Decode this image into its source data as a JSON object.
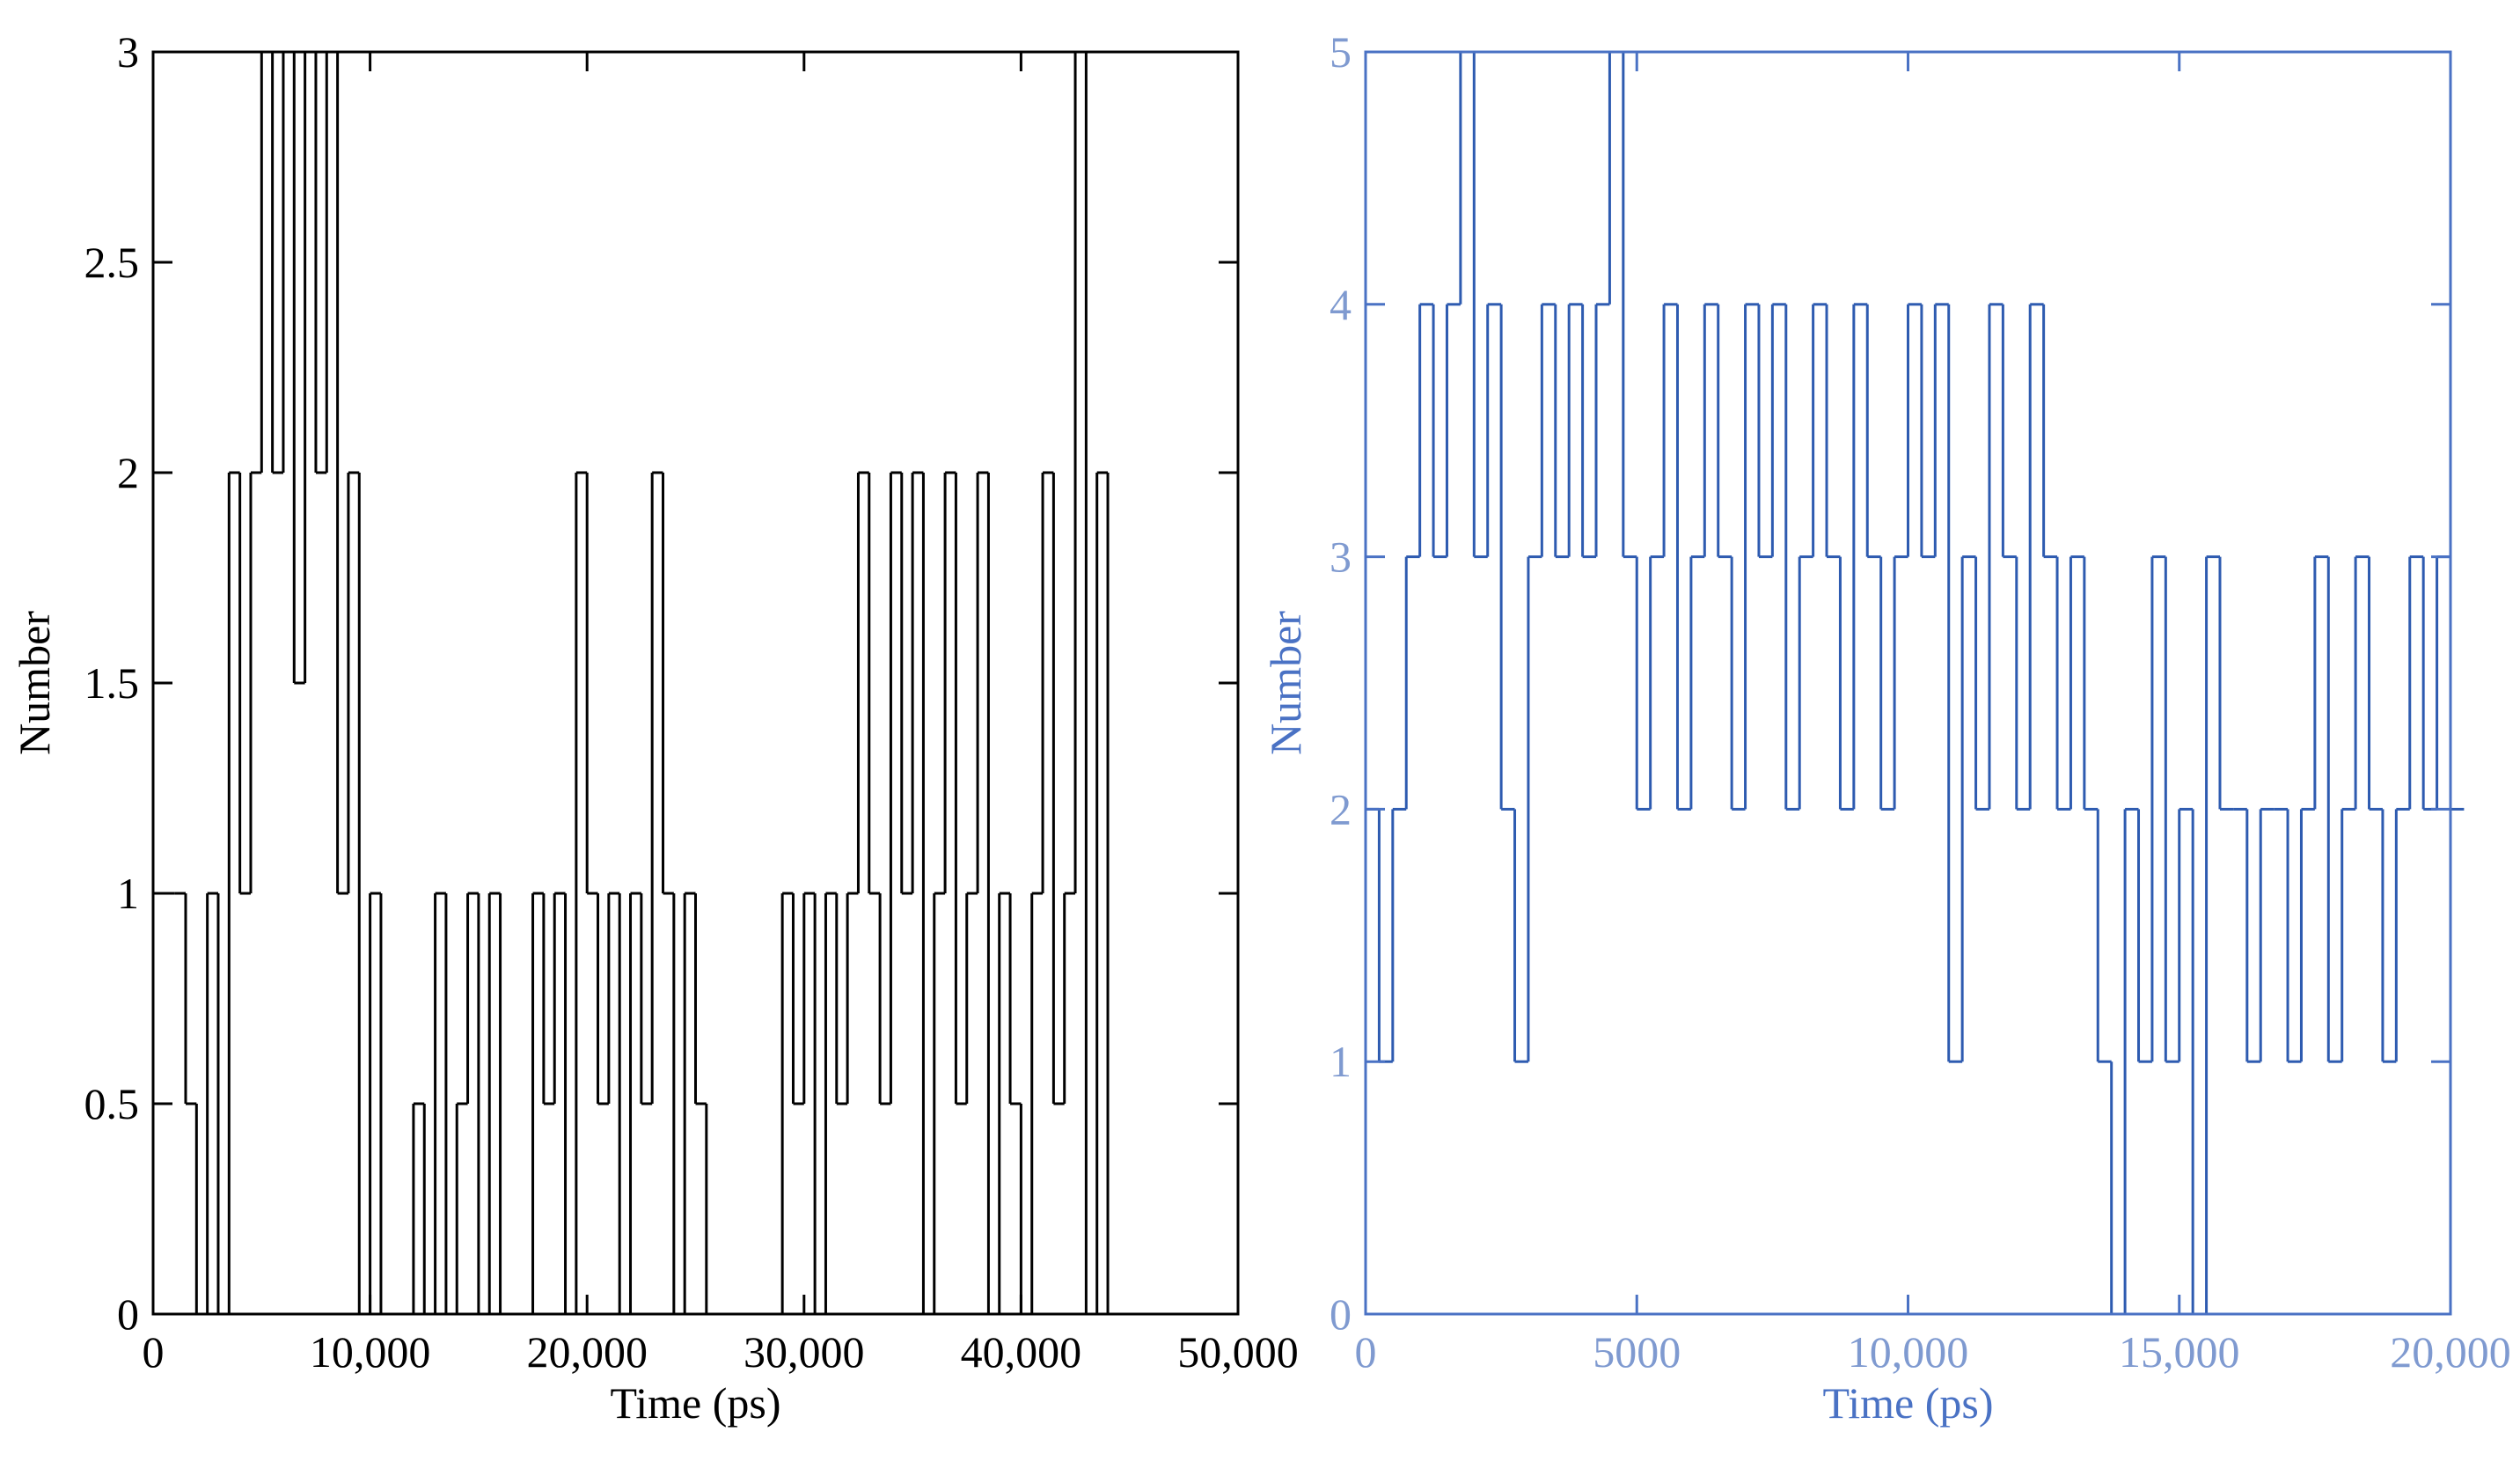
{
  "chart_data": [
    {
      "type": "line",
      "drawstyle": "steps-post",
      "color": "#000000",
      "axis_color": "#000000",
      "tick_label_color": "#000000",
      "xlabel": "Time (ps)",
      "ylabel": "Number",
      "xlim": [
        0,
        50000
      ],
      "xticks": [
        0,
        {
          "value": 10000,
          "label": "10,000"
        },
        {
          "value": 20000,
          "label": "20,000"
        },
        {
          "value": 30000,
          "label": "30,000"
        },
        {
          "value": 40000,
          "label": "40,000"
        },
        {
          "value": 50000,
          "label": "50,000"
        }
      ],
      "ylim": [
        0,
        3
      ],
      "yticks": [
        0,
        0.5,
        1,
        1.5,
        2,
        2.5,
        3
      ],
      "grid": false,
      "x": [
        0,
        500,
        1000,
        1500,
        2000,
        2500,
        3000,
        3500,
        4000,
        4500,
        5000,
        5500,
        6000,
        6500,
        7000,
        7500,
        8000,
        8500,
        9000,
        9500,
        10000,
        10500,
        11000,
        11500,
        12000,
        12500,
        13000,
        13500,
        14000,
        14500,
        15000,
        15500,
        16000,
        16500,
        17000,
        17500,
        18000,
        18500,
        19000,
        19500,
        20000,
        20500,
        21000,
        21500,
        22000,
        22500,
        23000,
        23500,
        24000,
        24500,
        25000,
        25500,
        26000,
        26500,
        27000,
        27500,
        28000,
        28500,
        29000,
        29500,
        30000,
        30500,
        31000,
        31500,
        32000,
        32500,
        33000,
        33500,
        34000,
        34500,
        35000,
        35500,
        36000,
        36500,
        37000,
        37500,
        38000,
        38500,
        39000,
        39500,
        40000,
        40500,
        41000,
        41500,
        42000,
        42500,
        43000,
        43500,
        44000
      ],
      "values": [
        1,
        1,
        1,
        0.5,
        0,
        1,
        0,
        2,
        1,
        2,
        3,
        2,
        3,
        1.5,
        3,
        2,
        3,
        1,
        2,
        0,
        1,
        0,
        0,
        0,
        0.5,
        0,
        1,
        0,
        0.5,
        1,
        0,
        1,
        0,
        0,
        0,
        1,
        0.5,
        1,
        0,
        2,
        1,
        0.5,
        1,
        0,
        1,
        0.5,
        2,
        1,
        0,
        1,
        0.5,
        0,
        0,
        0,
        0,
        0,
        0,
        0,
        1,
        0.5,
        1,
        0,
        1,
        0.5,
        1,
        2,
        1,
        0.5,
        2,
        1,
        2,
        0,
        1,
        2,
        0.5,
        1,
        2,
        0,
        1,
        0.5,
        0,
        1,
        2,
        0.5,
        1,
        3,
        0,
        2,
        0
      ]
    },
    {
      "type": "line",
      "drawstyle": "steps-post",
      "color": "#2e5bb0",
      "axis_color": "#4a72c4",
      "tick_label_color": "#7f9ad0",
      "xlabel": "Time (ps)",
      "ylabel": "Number",
      "xlim": [
        0,
        20000
      ],
      "xticks": [
        0,
        5000,
        {
          "value": 10000,
          "label": "10,000"
        },
        {
          "value": 15000,
          "label": "15,000"
        },
        {
          "value": 20000,
          "label": "20,000"
        }
      ],
      "ylim": [
        0,
        5
      ],
      "yticks": [
        0,
        1,
        2,
        3,
        4,
        5
      ],
      "grid": false,
      "x": [
        0,
        250,
        500,
        750,
        1000,
        1250,
        1500,
        1750,
        2000,
        2250,
        2500,
        2750,
        3000,
        3250,
        3500,
        3750,
        4000,
        4250,
        4500,
        4750,
        5000,
        5250,
        5500,
        5750,
        6000,
        6250,
        6500,
        6750,
        7000,
        7250,
        7500,
        7750,
        8000,
        8250,
        8500,
        8750,
        9000,
        9250,
        9500,
        9750,
        10000,
        10250,
        10500,
        10750,
        11000,
        11250,
        11500,
        11750,
        12000,
        12250,
        12500,
        12750,
        13000,
        13250,
        13500,
        13750,
        14000,
        14250,
        14500,
        14750,
        15000,
        15250,
        15500,
        15750,
        16000,
        16250,
        16500,
        16750,
        17000,
        17250,
        17500,
        17750,
        18000,
        18250,
        18500,
        18750,
        19000,
        19250,
        19500,
        19750,
        20000
      ],
      "values": [
        2,
        1,
        2,
        3,
        4,
        3,
        4,
        5,
        3,
        4,
        2,
        1,
        3,
        4,
        3,
        4,
        3,
        4,
        5,
        3,
        2,
        3,
        4,
        2,
        3,
        4,
        3,
        2,
        4,
        3,
        4,
        2,
        3,
        4,
        3,
        2,
        4,
        3,
        2,
        3,
        4,
        3,
        4,
        1,
        3,
        2,
        4,
        3,
        2,
        4,
        3,
        2,
        3,
        2,
        1,
        0,
        2,
        1,
        3,
        1,
        2,
        0,
        3,
        2,
        2,
        1,
        2,
        2,
        1,
        2,
        3,
        1,
        2,
        3,
        2,
        1,
        2,
        3,
        2,
        3,
        2
      ]
    }
  ]
}
